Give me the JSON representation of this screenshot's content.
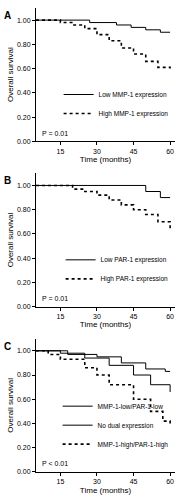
{
  "chart_data": [
    {
      "type": "line",
      "title": "A",
      "xlabel": "Time (months)",
      "ylabel": "Overall survival",
      "annotations": [
        "P = 0.01"
      ],
      "legend": "lower right",
      "grid": false,
      "xlim": [
        5,
        62
      ],
      "xticks": [
        15,
        30,
        45,
        60
      ],
      "ylim": [
        0,
        1.1
      ],
      "yticks": [
        {
          "value": 0,
          "label": "0.00"
        },
        {
          "value": 0.2,
          "label": "0.20"
        },
        {
          "value": 0.4,
          "label": "0.40"
        },
        {
          "value": 0.6,
          "label": "0.60"
        },
        {
          "value": 0.8,
          "label": "0.80"
        },
        {
          "value": 1,
          "label": "1.00"
        }
      ],
      "series": [
        {
          "name": "Low MMP-1 expression",
          "color": "#000000",
          "line_style": "solid",
          "x": [
            5,
            27,
            38,
            44,
            50,
            56,
            60
          ],
          "values": [
            1,
            0.98,
            0.96,
            0.94,
            0.92,
            0.9,
            0.9
          ]
        },
        {
          "name": "High MMP-1 expression",
          "color": "#000000",
          "line_style": "dotted",
          "x": [
            5,
            15,
            20,
            25,
            30,
            35,
            40,
            45,
            50,
            55,
            60
          ],
          "values": [
            1,
            0.98,
            0.96,
            0.93,
            0.88,
            0.83,
            0.77,
            0.72,
            0.66,
            0.61,
            0.6
          ]
        }
      ]
    },
    {
      "type": "line",
      "title": "B",
      "xlabel": "Time (months)",
      "ylabel": "Overall survival",
      "annotations": [
        "P = 0.01"
      ],
      "legend": "lower right",
      "grid": false,
      "xlim": [
        5,
        62
      ],
      "xticks": [
        15,
        30,
        45,
        60
      ],
      "ylim": [
        0,
        1.1
      ],
      "yticks": [
        {
          "value": 0,
          "label": "0.00"
        },
        {
          "value": 0.2,
          "label": "0.20"
        },
        {
          "value": 0.4,
          "label": "0.40"
        },
        {
          "value": 0.6,
          "label": "0.60"
        },
        {
          "value": 0.8,
          "label": "0.80"
        },
        {
          "value": 1,
          "label": "1.00"
        }
      ],
      "series": [
        {
          "name": "Low PAR-1 expression",
          "color": "#000000",
          "line_style": "solid",
          "x": [
            5,
            50,
            56,
            60
          ],
          "values": [
            1,
            0.95,
            0.9,
            0.9
          ]
        },
        {
          "name": "High PAR-1 expression",
          "color": "#000000",
          "line_style": "dotted",
          "x": [
            5,
            20,
            25,
            30,
            35,
            40,
            45,
            50,
            55,
            60
          ],
          "values": [
            1,
            0.97,
            0.95,
            0.92,
            0.88,
            0.84,
            0.8,
            0.76,
            0.7,
            0.64
          ]
        }
      ]
    },
    {
      "type": "line",
      "title": "C",
      "xlabel": "Time (months)",
      "ylabel": "Overall survival",
      "annotations": [
        "P < 0.01"
      ],
      "legend": "lower right",
      "grid": false,
      "xlim": [
        5,
        62
      ],
      "xticks": [
        15,
        30,
        45,
        60
      ],
      "ylim": [
        0,
        1.1
      ],
      "yticks": [
        {
          "value": 0,
          "label": "0.00"
        },
        {
          "value": 0.2,
          "label": "0.20"
        },
        {
          "value": 0.4,
          "label": "0.40"
        },
        {
          "value": 0.6,
          "label": "0.60"
        },
        {
          "value": 0.8,
          "label": "0.80"
        },
        {
          "value": 1,
          "label": "1.00"
        }
      ],
      "series": [
        {
          "name": "MMP-1-low/PAR-1-low",
          "color": "#000000",
          "line_style": "solid",
          "x": [
            5,
            18,
            30,
            40,
            50,
            58,
            60
          ],
          "values": [
            1,
            0.97,
            0.95,
            0.9,
            0.85,
            0.83,
            0.83
          ]
        },
        {
          "name": "No dual expression",
          "color": "#000000",
          "line_style": "solid",
          "x": [
            5,
            15,
            25,
            35,
            45,
            52,
            60
          ],
          "values": [
            1,
            0.98,
            0.94,
            0.88,
            0.8,
            0.72,
            0.66
          ]
        },
        {
          "name": "MMP-1-high/PAR-1-high",
          "color": "#000000",
          "line_style": "dotted",
          "x": [
            5,
            10,
            15,
            25,
            30,
            35,
            45,
            52,
            57,
            60
          ],
          "values": [
            1,
            0.97,
            0.93,
            0.86,
            0.8,
            0.72,
            0.6,
            0.5,
            0.42,
            0.4
          ]
        }
      ]
    }
  ]
}
